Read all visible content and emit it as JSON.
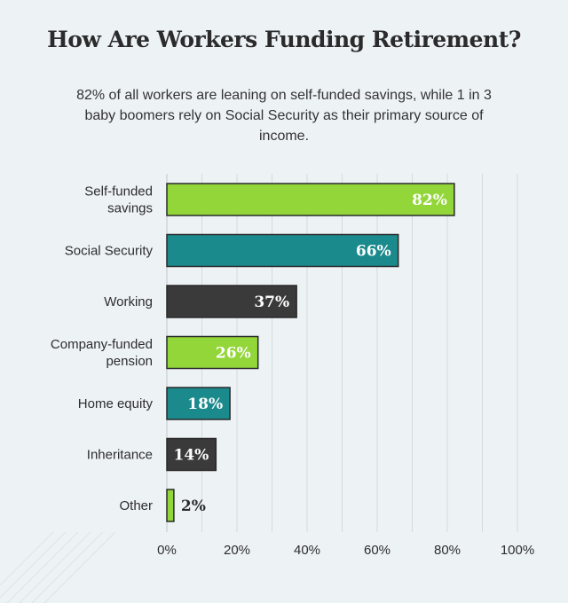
{
  "title": "How Are Workers Funding Retirement?",
  "subtitle": "82% of all workers are leaning on self-funded savings, while 1 in 3 baby boomers rely on Social Security as their primary source of income.",
  "colors": {
    "green": "#93d63a",
    "teal": "#1a8a8c",
    "dark": "#3a3a3a",
    "background": "#edf2f5",
    "grid": "#d5dadd"
  },
  "chart_data": {
    "type": "bar",
    "orientation": "horizontal",
    "title": "How Are Workers Funding Retirement?",
    "categories": [
      [
        "Self-funded",
        "savings"
      ],
      [
        "Social Security"
      ],
      [
        "Working"
      ],
      [
        "Company-funded",
        "pension"
      ],
      [
        "Home equity"
      ],
      [
        "Inheritance"
      ],
      [
        "Other"
      ]
    ],
    "values": [
      82,
      66,
      37,
      26,
      18,
      14,
      2
    ],
    "value_labels": [
      "82%",
      "66%",
      "37%",
      "26%",
      "18%",
      "14%",
      "2%"
    ],
    "bar_colors": [
      "#93d63a",
      "#1a8a8c",
      "#3a3a3a",
      "#93d63a",
      "#1a8a8c",
      "#3a3a3a",
      "#93d63a"
    ],
    "xlim": [
      0,
      100
    ],
    "xticks": [
      0,
      20,
      40,
      60,
      80,
      100
    ],
    "xtick_labels": [
      "0%",
      "20%",
      "40%",
      "60%",
      "80%",
      "100%"
    ],
    "grid": true
  }
}
